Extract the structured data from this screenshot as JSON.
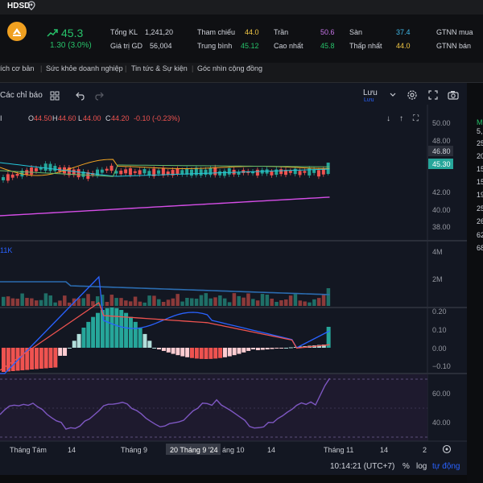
{
  "ticker": "HDSD",
  "header": {
    "price": "45.3",
    "change": "1.30 (3.0%)",
    "stats": [
      {
        "label": "Tổng KL",
        "value": "1,241,20",
        "color": "#d1d4dc"
      },
      {
        "label": "Giá trị GD",
        "value": "56,004",
        "color": "#d1d4dc"
      },
      {
        "label": "Tham chiếu",
        "value": "44.0",
        "color": "#f2c744"
      },
      {
        "label": "Trung bình",
        "value": "45.12",
        "color": "#27c26a"
      },
      {
        "label": "Trần",
        "value": "50.6",
        "color": "#c774e8"
      },
      {
        "label": "Cao nhất",
        "value": "45.8",
        "color": "#27c26a"
      },
      {
        "label": "Sàn",
        "value": "37.4",
        "color": "#3fb8e8"
      },
      {
        "label": "Thấp nhất",
        "value": "44.0",
        "color": "#f2c744"
      },
      {
        "label": "GTNN mua",
        "value": ""
      },
      {
        "label": "GTNN bán",
        "value": ""
      }
    ]
  },
  "tabs": [
    "ích cơ bản",
    "Sức khỏe doanh nghiệp",
    "Tin tức & Sự kiện",
    "Góc nhìn cộng đồng"
  ],
  "toolbar": {
    "indicators_label": "Các chỉ báo",
    "save_label": "Lưu",
    "save_sub": "Lưu"
  },
  "ohlc": {
    "o_label": "O",
    "o": "44.50",
    "h_label": "H",
    "h": "44.60",
    "l_label": "L",
    "l": "44.00",
    "c_label": "C",
    "c": "44.20",
    "change": "-0.10 (-0.23%)"
  },
  "volume_label": "11K",
  "price_axis": [
    "50.00",
    "48.00",
    "46.80",
    "45.30",
    "42.00",
    "40.00",
    "38.00"
  ],
  "price_tag_1": "46.80",
  "price_tag_2": "45.30",
  "volume_axis": [
    "4M",
    "2M"
  ],
  "macd_axis": [
    "0.20",
    "0.10",
    "0.00",
    "−0.10"
  ],
  "rsi_axis": [
    "60.00",
    "40.00"
  ],
  "time_axis": [
    "Tháng Tám",
    "14",
    "Tháng 9",
    "20 Tháng 9 '24",
    "áng 10",
    "14",
    "Tháng 11",
    "14",
    "2"
  ],
  "bottom": {
    "time": "10:14:21 (UTC+7)",
    "pct": "%",
    "log": "log",
    "auto": "tự động"
  },
  "right_strip": [
    "M",
    "5,",
    "25",
    "20",
    "15",
    "15",
    "19",
    "25",
    "26",
    "62",
    "68"
  ],
  "colors": {
    "up": "#26a69a",
    "down": "#ef5350",
    "accent": "#2962ff",
    "rsi": "#7e57c2"
  }
}
